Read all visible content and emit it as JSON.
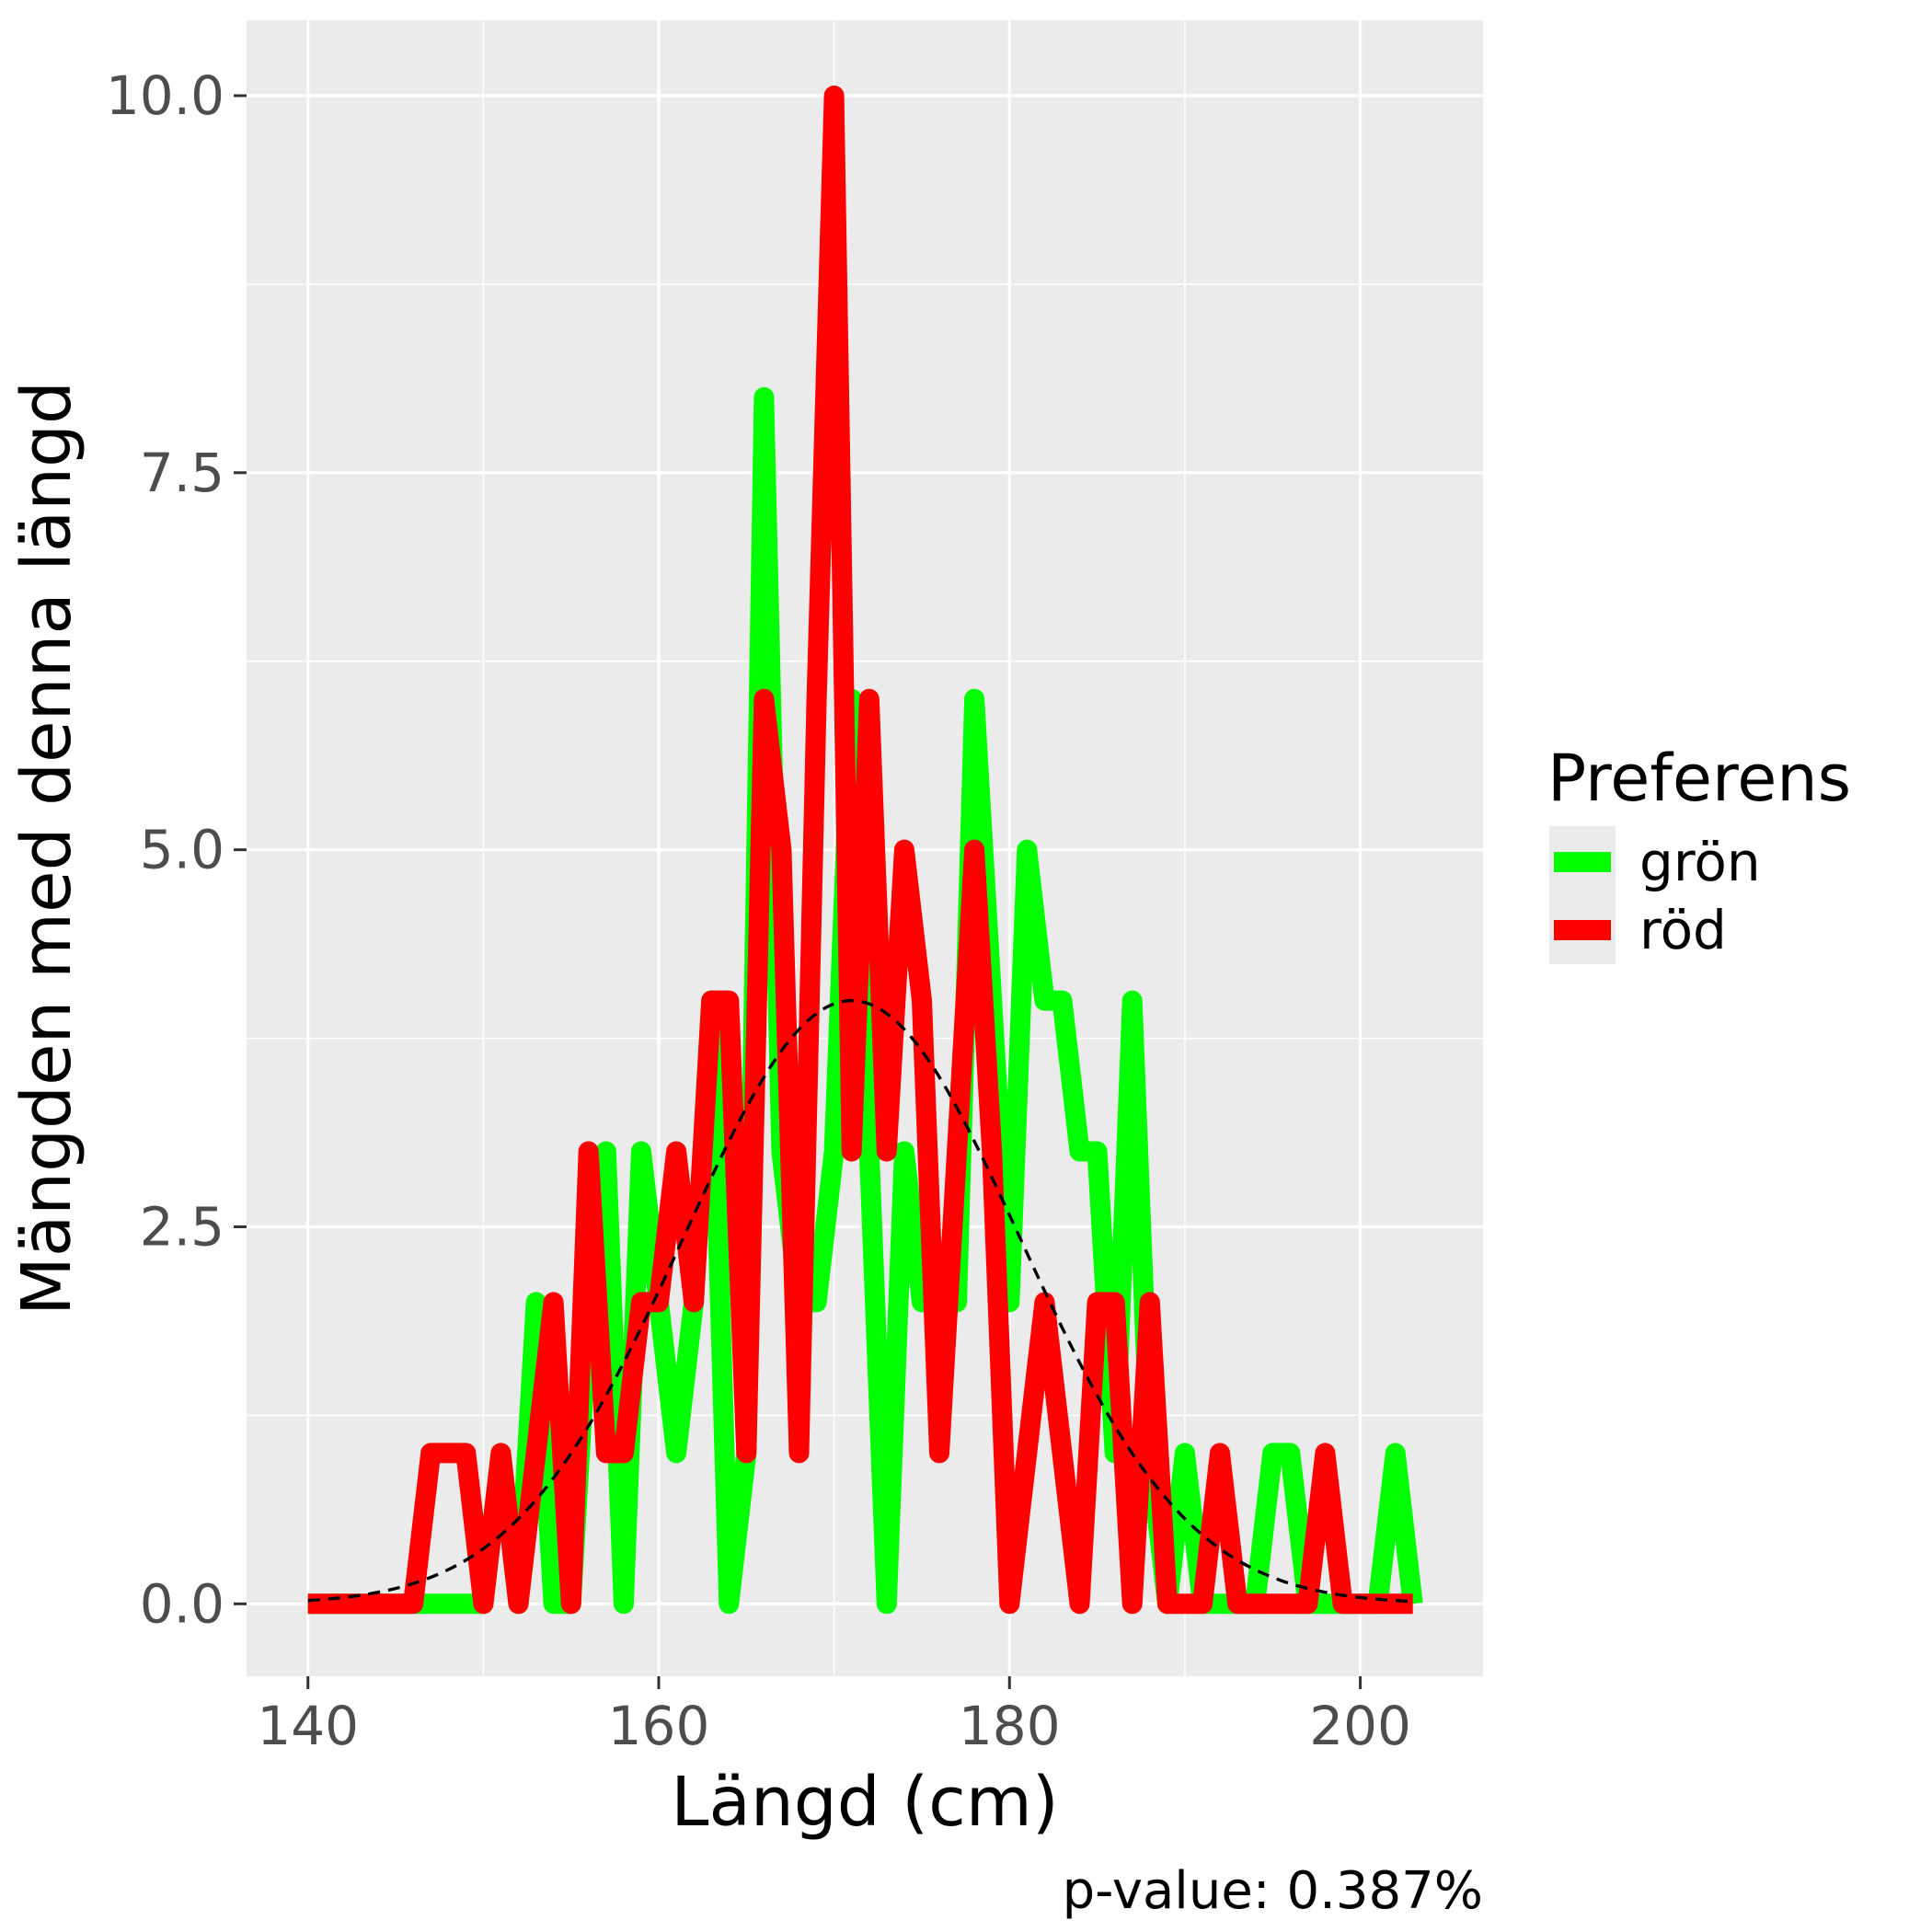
{
  "chart_data": {
    "type": "line",
    "xlabel": "Längd (cm)",
    "ylabel": "Mängden med denna längd",
    "caption": "p-value: 0.387%",
    "xlim": [
      136.5,
      207
    ],
    "ylim": [
      -0.48,
      10.5
    ],
    "x_ticks": [
      140,
      160,
      180,
      200
    ],
    "x_tick_labels": [
      "140",
      "160",
      "180",
      "200"
    ],
    "y_ticks": [
      0,
      2.5,
      5,
      7.5,
      10
    ],
    "y_tick_labels": [
      "0.0",
      "2.5",
      "5.0",
      "7.5",
      "10.0"
    ],
    "grid": true,
    "legend": {
      "title": "Preferens",
      "position": "right"
    },
    "series": [
      {
        "name": "grön",
        "color": "#00ff00",
        "points": [
          [
            140,
            0
          ],
          [
            141,
            0
          ],
          [
            142,
            0
          ],
          [
            143,
            0
          ],
          [
            144,
            0
          ],
          [
            145,
            0
          ],
          [
            146,
            0
          ],
          [
            147,
            0
          ],
          [
            148,
            0
          ],
          [
            149,
            0
          ],
          [
            150,
            0
          ],
          [
            151,
            1
          ],
          [
            152,
            0
          ],
          [
            153,
            2
          ],
          [
            154,
            0
          ],
          [
            155,
            0
          ],
          [
            156,
            2
          ],
          [
            157,
            3
          ],
          [
            158,
            0
          ],
          [
            159,
            3
          ],
          [
            160,
            2
          ],
          [
            161,
            1
          ],
          [
            162,
            2
          ],
          [
            163,
            4
          ],
          [
            164,
            0
          ],
          [
            165,
            1
          ],
          [
            166,
            8
          ],
          [
            167,
            3
          ],
          [
            168,
            2
          ],
          [
            169,
            2
          ],
          [
            170,
            3
          ],
          [
            171,
            6
          ],
          [
            172,
            3
          ],
          [
            173,
            0
          ],
          [
            174,
            3
          ],
          [
            175,
            2
          ],
          [
            176,
            2
          ],
          [
            177,
            2
          ],
          [
            178,
            6
          ],
          [
            179,
            4
          ],
          [
            180,
            2
          ],
          [
            181,
            5
          ],
          [
            182,
            4
          ],
          [
            183,
            4
          ],
          [
            184,
            3
          ],
          [
            185,
            3
          ],
          [
            186,
            1
          ],
          [
            187,
            4
          ],
          [
            188,
            1
          ],
          [
            189,
            0
          ],
          [
            190,
            1
          ],
          [
            191,
            0
          ],
          [
            192,
            0
          ],
          [
            193,
            0
          ],
          [
            194,
            0
          ],
          [
            195,
            1
          ],
          [
            196,
            1
          ],
          [
            197,
            0
          ],
          [
            198,
            0
          ],
          [
            199,
            0
          ],
          [
            200,
            0
          ],
          [
            201,
            0
          ],
          [
            202,
            1
          ],
          [
            203,
            0
          ]
        ]
      },
      {
        "name": "röd",
        "color": "#ff0000",
        "points": [
          [
            140,
            0
          ],
          [
            141,
            0
          ],
          [
            142,
            0
          ],
          [
            143,
            0
          ],
          [
            144,
            0
          ],
          [
            145,
            0
          ],
          [
            146,
            0
          ],
          [
            147,
            1
          ],
          [
            148,
            1
          ],
          [
            149,
            1
          ],
          [
            150,
            0
          ],
          [
            151,
            1
          ],
          [
            152,
            0
          ],
          [
            153,
            1
          ],
          [
            154,
            2
          ],
          [
            155,
            0
          ],
          [
            156,
            3
          ],
          [
            157,
            1
          ],
          [
            158,
            1
          ],
          [
            159,
            2
          ],
          [
            160,
            2
          ],
          [
            161,
            3
          ],
          [
            162,
            2
          ],
          [
            163,
            4
          ],
          [
            164,
            4
          ],
          [
            165,
            1
          ],
          [
            166,
            6
          ],
          [
            167,
            5
          ],
          [
            168,
            1
          ],
          [
            169,
            6
          ],
          [
            170,
            10
          ],
          [
            171,
            3
          ],
          [
            172,
            6
          ],
          [
            173,
            3
          ],
          [
            174,
            5
          ],
          [
            175,
            4
          ],
          [
            176,
            1
          ],
          [
            177,
            3
          ],
          [
            178,
            5
          ],
          [
            179,
            3
          ],
          [
            180,
            0
          ],
          [
            181,
            1
          ],
          [
            182,
            2
          ],
          [
            183,
            1
          ],
          [
            184,
            0
          ],
          [
            185,
            2
          ],
          [
            186,
            2
          ],
          [
            187,
            0
          ],
          [
            188,
            2
          ],
          [
            189,
            0
          ],
          [
            190,
            0
          ],
          [
            191,
            0
          ],
          [
            192,
            1
          ],
          [
            193,
            0
          ],
          [
            194,
            0
          ],
          [
            195,
            0
          ],
          [
            196,
            0
          ],
          [
            197,
            0
          ],
          [
            198,
            1
          ],
          [
            199,
            0
          ],
          [
            200,
            0
          ],
          [
            201,
            0
          ],
          [
            202,
            0
          ],
          [
            203,
            0
          ]
        ]
      },
      {
        "style": "dashed",
        "color": "#000000",
        "normal_curve": {
          "mean": 171,
          "sd": 9.6,
          "peak": 4.0,
          "x_range": [
            140,
            203
          ]
        }
      }
    ]
  }
}
